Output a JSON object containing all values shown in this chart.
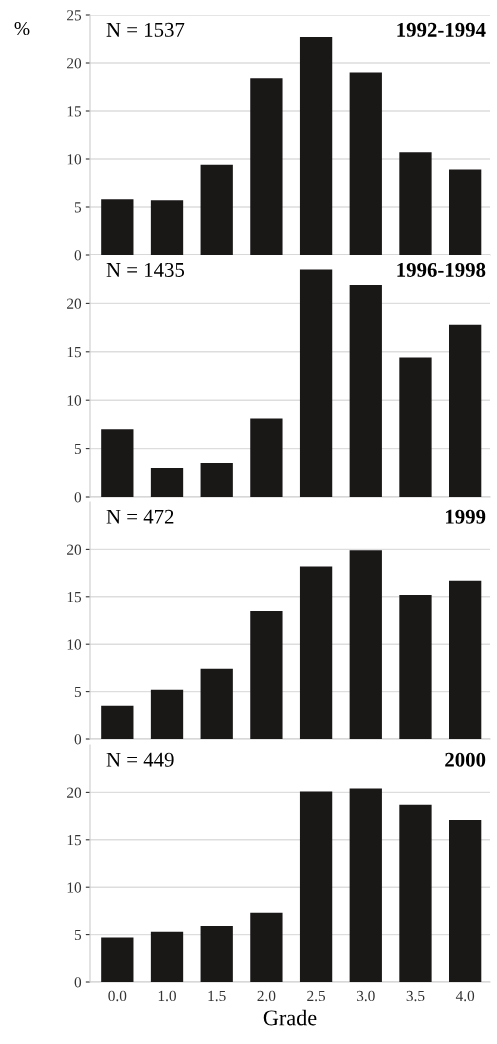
{
  "chart_data": [
    {
      "type": "bar",
      "title": "1992-1994",
      "ylabel": "%",
      "annotations": [
        "N = 1537"
      ],
      "categories": [
        "0.0",
        "1.0",
        "1.5",
        "2.0",
        "2.5",
        "3.0",
        "3.5",
        "4.0"
      ],
      "values": [
        5.8,
        5.7,
        9.4,
        18.4,
        22.7,
        19.0,
        10.7,
        8.9
      ],
      "color": "#1a1717",
      "ylim": [
        0,
        25
      ],
      "yticks": [
        0,
        5,
        10,
        15,
        20,
        25
      ],
      "grid": "y",
      "tick_labels": "y"
    },
    {
      "type": "bar",
      "title": "1996-1998",
      "annotations": [
        "N = 1435"
      ],
      "categories": [
        "0.0",
        "1.0",
        "1.5",
        "2.0",
        "2.5",
        "3.0",
        "3.5",
        "4.0"
      ],
      "values": [
        7.0,
        3.0,
        3.5,
        8.1,
        23.5,
        21.9,
        14.4,
        17.8
      ],
      "color": "#1a1717",
      "ylim": [
        0,
        25
      ],
      "yticks": [
        0,
        5,
        10,
        15,
        20
      ],
      "grid": "y",
      "tick_labels": "y"
    },
    {
      "type": "bar",
      "title": "1999",
      "annotations": [
        "N = 472"
      ],
      "categories": [
        "0.0",
        "1.0",
        "1.5",
        "2.0",
        "2.5",
        "3.0",
        "3.5",
        "4.0"
      ],
      "values": [
        3.5,
        5.2,
        7.4,
        13.5,
        18.2,
        19.9,
        15.2,
        16.7
      ],
      "color": "#1a1717",
      "ylim": [
        0,
        25
      ],
      "yticks": [
        0,
        5,
        10,
        15,
        20
      ],
      "grid": "y",
      "tick_labels": "y"
    },
    {
      "type": "bar",
      "title": "2000",
      "xlabel": "Grade",
      "annotations": [
        "N = 449"
      ],
      "categories": [
        "0.0",
        "1.0",
        "1.5",
        "2.0",
        "2.5",
        "3.0",
        "3.5",
        "4.0"
      ],
      "values": [
        4.7,
        5.3,
        5.9,
        7.3,
        20.1,
        20.4,
        18.7,
        17.1
      ],
      "color": "#1a1717",
      "ylim": [
        0,
        25
      ],
      "yticks": [
        0,
        5,
        10,
        15,
        20
      ],
      "grid": "y"
    }
  ]
}
